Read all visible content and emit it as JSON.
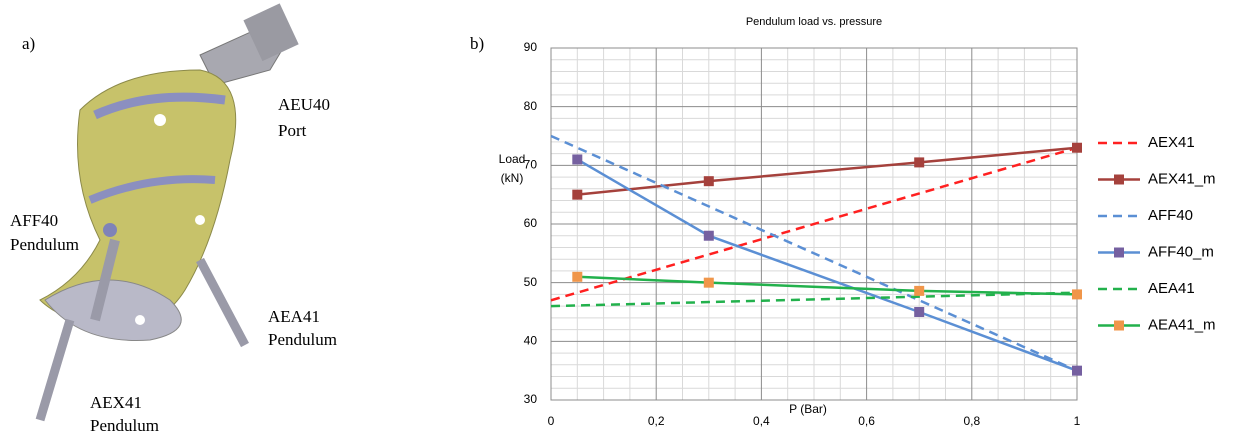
{
  "figure": {
    "panel_labels": [
      "a)",
      "b)"
    ],
    "image_labels": [
      [
        "AEU40",
        "Port"
      ],
      [
        "AFF40",
        "Pendulum"
      ],
      [
        "AEA41",
        "Pendulum"
      ],
      [
        "AEX41",
        "Pendulum"
      ]
    ]
  },
  "chart_data": {
    "type": "line",
    "title": "Pendulum load vs. pressure",
    "xlabel": "P (Bar)",
    "ylabel": "Load\n(kN)",
    "xlim": [
      0,
      1
    ],
    "ylim": [
      30,
      90
    ],
    "xticks": [
      0,
      {
        "value": 0.2,
        "label": "0,2"
      },
      {
        "value": 0.4,
        "label": "0,4"
      },
      {
        "value": 0.6,
        "label": "0,6"
      },
      {
        "value": 0.8,
        "label": "0,8"
      },
      1
    ],
    "yticks": [
      30,
      40,
      50,
      60,
      70,
      80,
      90
    ],
    "xminorticks": [
      0.05,
      0.1,
      0.15,
      0.25,
      0.3,
      0.35,
      0.45,
      0.5,
      0.55,
      0.65,
      0.7,
      0.75,
      0.85,
      0.9,
      0.95
    ],
    "yminorticks": [
      32,
      34,
      36,
      38,
      42,
      44,
      46,
      48,
      52,
      54,
      56,
      58,
      62,
      64,
      66,
      68,
      72,
      74,
      76,
      78,
      82,
      84,
      86,
      88
    ],
    "grid": true,
    "legend": "right",
    "series": [
      {
        "name": "AEX41",
        "color": "#ff2020",
        "dash": true,
        "x": [
          0,
          1
        ],
        "values": [
          47,
          73
        ]
      },
      {
        "name": "AEX41_m",
        "color": "#a5413c",
        "dash": false,
        "marker_color": "#a5413c",
        "x": [
          0.05,
          0.3,
          0.7,
          1
        ],
        "values": [
          65,
          67.3,
          70.5,
          73
        ]
      },
      {
        "name": "AFF40",
        "color": "#5b8fd4",
        "dash": true,
        "x": [
          0,
          1
        ],
        "values": [
          75,
          35
        ]
      },
      {
        "name": "AFF40_m",
        "color": "#5b8fd4",
        "dash": false,
        "marker_color": "#7560a0",
        "x": [
          0.05,
          0.3,
          0.7,
          1
        ],
        "values": [
          71,
          58,
          45,
          35
        ]
      },
      {
        "name": "AEA41",
        "color": "#22b14c",
        "dash": true,
        "x": [
          0,
          1
        ],
        "values": [
          46,
          48.3
        ]
      },
      {
        "name": "AEA41_m",
        "color": "#22b14c",
        "dash": false,
        "marker_color": "#f0964a",
        "x": [
          0.05,
          0.3,
          0.7,
          1
        ],
        "values": [
          51,
          50,
          48.6,
          48
        ]
      }
    ]
  }
}
